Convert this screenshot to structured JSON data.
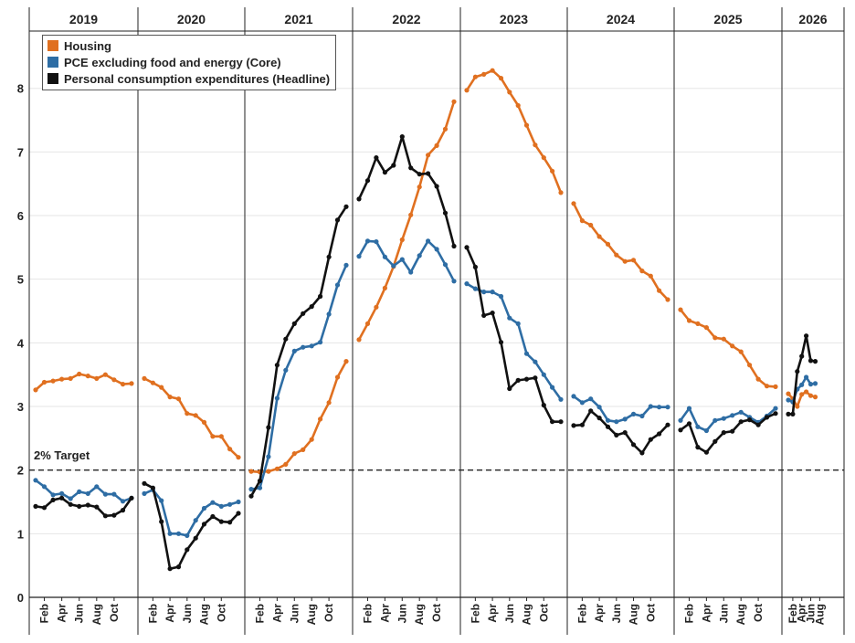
{
  "chart_data": {
    "type": "line",
    "title": "",
    "xlabel": "",
    "ylabel": "",
    "ylim": [
      0,
      8.9
    ],
    "yticks": [
      0,
      1,
      2,
      3,
      4,
      5,
      6,
      7,
      8
    ],
    "years": [
      "2019",
      "2020",
      "2021",
      "2022",
      "2023",
      "2024",
      "2025",
      "2026"
    ],
    "month_tick_labels": [
      "Feb",
      "Apr",
      "Jun",
      "Aug",
      "Oct"
    ],
    "legend_position": "top-left",
    "grid": "horizontal",
    "reference_line": {
      "value": 2,
      "label": "2% Target"
    },
    "series": [
      {
        "name": "Housing",
        "color": "#e07020",
        "values": [
          3.26,
          3.38,
          3.4,
          3.43,
          3.44,
          3.51,
          3.48,
          3.44,
          3.5,
          3.42,
          3.35,
          3.36,
          3.44,
          3.37,
          3.3,
          3.15,
          3.12,
          2.89,
          2.86,
          2.75,
          2.53,
          2.53,
          2.33,
          2.2,
          1.98,
          1.97,
          1.98,
          2.02,
          2.09,
          2.26,
          2.32,
          2.48,
          2.8,
          3.06,
          3.46,
          3.71,
          4.05,
          4.3,
          4.56,
          4.86,
          5.2,
          5.62,
          6.01,
          6.45,
          6.95,
          7.1,
          7.36,
          7.79,
          7.97,
          8.18,
          8.22,
          8.28,
          8.16,
          7.94,
          7.73,
          7.42,
          7.11,
          6.91,
          6.7,
          6.36,
          6.19,
          5.92,
          5.85,
          5.67,
          5.55,
          5.38,
          5.28,
          5.3,
          5.13,
          5.05,
          4.82,
          4.68,
          4.52,
          4.35,
          4.3,
          4.24,
          4.08,
          4.06,
          3.95,
          3.86,
          3.65,
          3.43,
          3.32,
          3.31,
          3.2,
          3.12,
          3.0,
          3.19,
          3.23,
          3.17,
          3.15
        ]
      },
      {
        "name": "PCE excluding food and energy (Core)",
        "color": "#2e6da4",
        "values": [
          1.84,
          1.74,
          1.61,
          1.63,
          1.55,
          1.66,
          1.63,
          1.74,
          1.62,
          1.62,
          1.51,
          1.56,
          1.63,
          1.69,
          1.52,
          1.0,
          1.0,
          0.97,
          1.21,
          1.4,
          1.49,
          1.43,
          1.46,
          1.5,
          1.7,
          1.72,
          2.21,
          3.13,
          3.57,
          3.87,
          3.93,
          3.95,
          4.01,
          4.45,
          4.91,
          5.22,
          5.36,
          5.6,
          5.59,
          5.35,
          5.21,
          5.31,
          5.11,
          5.37,
          5.6,
          5.47,
          5.23,
          4.97,
          4.93,
          4.85,
          4.8,
          4.8,
          4.73,
          4.39,
          4.3,
          3.83,
          3.7,
          3.5,
          3.3,
          3.11,
          3.16,
          3.06,
          3.12,
          2.99,
          2.78,
          2.76,
          2.8,
          2.88,
          2.85,
          3.0,
          2.99,
          2.99,
          2.78,
          2.97,
          2.68,
          2.62,
          2.78,
          2.81,
          2.86,
          2.91,
          2.83,
          2.75,
          2.85,
          2.97,
          3.1,
          3.07,
          3.27,
          3.34,
          3.46,
          3.35,
          3.36
        ]
      },
      {
        "name": "Personal consumption expenditures (Headline)",
        "color": "#111111",
        "values": [
          1.43,
          1.41,
          1.53,
          1.56,
          1.46,
          1.43,
          1.45,
          1.42,
          1.28,
          1.29,
          1.37,
          1.56,
          1.79,
          1.72,
          1.19,
          0.45,
          0.48,
          0.75,
          0.93,
          1.15,
          1.27,
          1.19,
          1.18,
          1.32,
          1.59,
          1.83,
          2.67,
          3.65,
          4.06,
          4.3,
          4.46,
          4.57,
          4.73,
          5.35,
          5.93,
          6.14,
          6.26,
          6.55,
          6.91,
          6.68,
          6.79,
          7.24,
          6.75,
          6.65,
          6.66,
          6.46,
          6.04,
          5.52,
          5.5,
          5.19,
          4.43,
          4.47,
          4.01,
          3.28,
          3.41,
          3.43,
          3.45,
          3.02,
          2.76,
          2.76,
          2.7,
          2.71,
          2.93,
          2.82,
          2.68,
          2.55,
          2.59,
          2.4,
          2.27,
          2.48,
          2.57,
          2.71,
          2.63,
          2.73,
          2.36,
          2.28,
          2.45,
          2.59,
          2.61,
          2.76,
          2.79,
          2.71,
          2.83,
          2.89,
          2.88,
          2.88,
          3.55,
          3.79,
          4.11,
          3.72,
          3.71
        ]
      }
    ]
  }
}
